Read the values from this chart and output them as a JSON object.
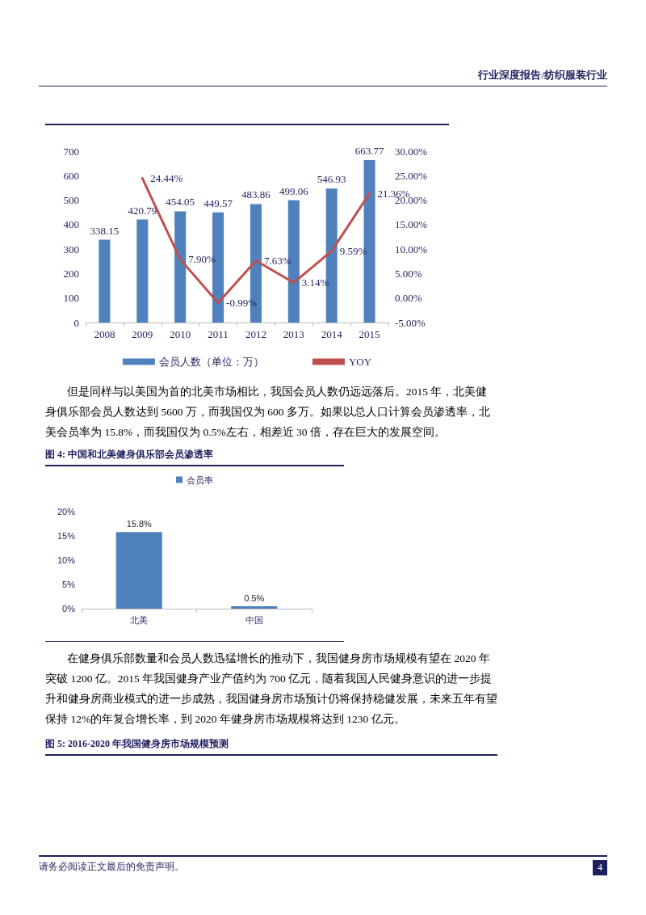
{
  "chart_data": [
    {
      "type": "bar",
      "categories": [
        "2008",
        "2009",
        "2010",
        "2011",
        "2012",
        "2013",
        "2014",
        "2015"
      ],
      "series": [
        {
          "name": "会员人数（单位：万）",
          "color": "#4f81bd",
          "values": [
            338.15,
            420.79,
            454.05,
            449.57,
            483.86,
            499.06,
            546.93,
            663.77
          ],
          "value_labels": [
            "338.15",
            "420.79",
            "454.05",
            "449.57",
            "483.86",
            "499.06",
            "546.93",
            "663.77"
          ]
        },
        {
          "name": "YOY",
          "type": "line",
          "axis": "y2",
          "color": "#c0504d",
          "values": [
            null,
            24.44,
            7.9,
            -0.99,
            7.63,
            3.14,
            9.59,
            21.36
          ],
          "value_labels": [
            null,
            "24.44%",
            "7.90%",
            "-0.99%",
            "7.63%",
            "3.14%",
            "9.59%",
            "21.36%"
          ]
        }
      ],
      "ylim": [
        0,
        700
      ],
      "yticks": [
        0,
        100,
        200,
        300,
        400,
        500,
        600,
        700
      ],
      "y2lim": [
        -5,
        30
      ],
      "y2ticks": [
        {
          "value": -5,
          "label": "-5.00%"
        },
        {
          "value": 0,
          "label": "0.00%"
        },
        {
          "value": 5,
          "label": "5.00%"
        },
        {
          "value": 10,
          "label": "10.00%"
        },
        {
          "value": 15,
          "label": "15.00%"
        },
        {
          "value": 20,
          "label": "20.00%"
        },
        {
          "value": 25,
          "label": "25.00%"
        },
        {
          "value": 30,
          "label": "30.00%"
        }
      ],
      "grid": false,
      "legend": "bottom",
      "marker": "none",
      "line_style": "solid",
      "annotations": [
        "行业深度报告/纺织服装行业",
        "但是同样与以美国为首的北美市场相比，我国会员人数仍远远落后。2015 年，北美健身俱乐部会员人数达到 5600 万，而我国仅为 600 多万。如果以总人口计算会员渗透率，北美会员率为 15.8%，而我国仅为 0.5%左右，相差近 30 倍，存在巨大的发展空间。"
      ]
    },
    {
      "type": "bar",
      "title": "图 4:  中国和北美健身俱乐部会员渗透率",
      "categories": [
        "北美",
        "中国"
      ],
      "series": [
        {
          "name": "会员率",
          "color": "#4f81bd",
          "values": [
            15.8,
            0.5
          ],
          "value_labels": [
            "15.8%",
            "0.5%"
          ]
        }
      ],
      "ylim": [
        0,
        20
      ],
      "yticks": [
        {
          "value": 0,
          "label": "0%"
        },
        {
          "value": 5,
          "label": "5%"
        },
        {
          "value": 10,
          "label": "10%"
        },
        {
          "value": 15,
          "label": "15%"
        },
        {
          "value": 20,
          "label": "20%"
        }
      ],
      "grid": false,
      "legend": "top",
      "annotations": [
        "在健身俱乐部数量和会员人数迅猛增长的推动下，我国健身房市场规模有望在 2020 年突破 1200 亿。2015 年我国健身产业产值约为 700 亿元，随着我国人民健身意识的进一步提升和健身房商业模式的进一步成熟，我国健身房市场预计仍将保持稳健发展，未来五年有望保持 12%的年复合增长率，到 2020 年健身房市场规模将达到 1230 亿元。",
        "图 5:  2016-2020 年我国健身房市场规模预测",
        "请务必阅读正文最后的免责声明。",
        "4"
      ]
    }
  ]
}
